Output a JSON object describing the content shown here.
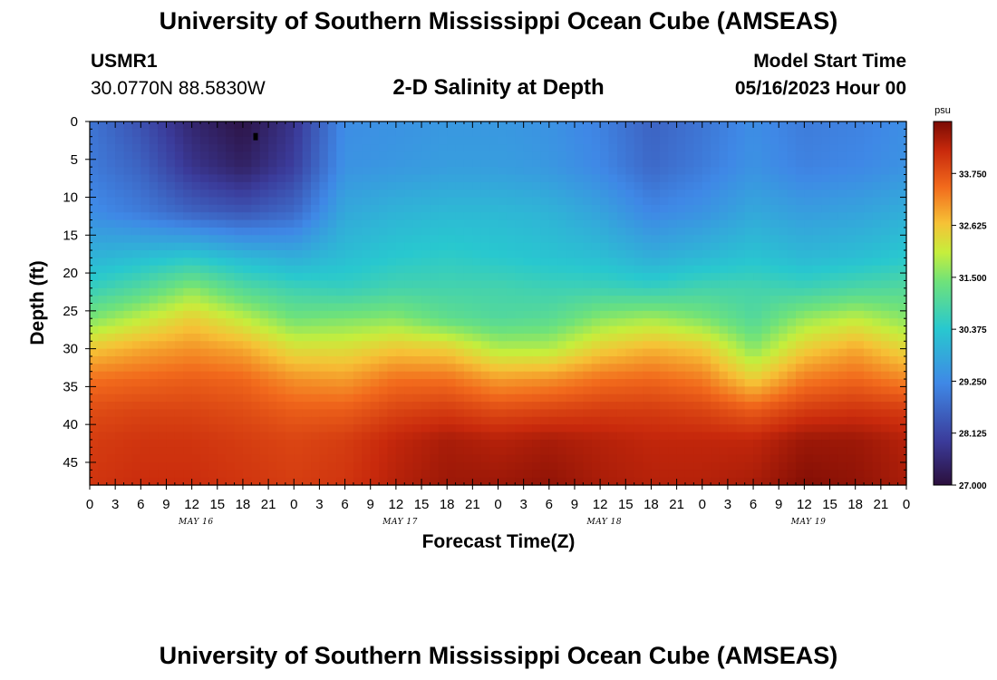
{
  "page": {
    "title": "University of Southern Mississippi Ocean Cube (AMSEAS)",
    "station": "USMR1",
    "coords": "30.0770N  88.5830W",
    "subtitle": "2-D Salinity at Depth",
    "model_start_label": "Model Start Time",
    "model_start_value": "05/16/2023 Hour 00",
    "footer_title": "University of Southern Mississippi Ocean Cube (AMSEAS)"
  },
  "chart_data": {
    "type": "heatmap",
    "title": "2-D Salinity at Depth",
    "xlabel": "Forecast Time(Z)",
    "ylabel": "Depth (ft)",
    "x_range_hours": [
      0,
      96
    ],
    "y_range_ft": [
      0,
      48
    ],
    "x_ticks": [
      "0",
      "3",
      "6",
      "9",
      "12",
      "15",
      "18",
      "21",
      "0",
      "3",
      "6",
      "9",
      "12",
      "15",
      "18",
      "21",
      "0",
      "3",
      "6",
      "9",
      "12",
      "15",
      "18",
      "21",
      "0",
      "3",
      "6",
      "9",
      "12",
      "15",
      "18",
      "21",
      "0"
    ],
    "day_labels": [
      "MAY 16",
      "MAY 17",
      "MAY 18",
      "MAY 19"
    ],
    "y_ticks": [
      "0",
      "5",
      "10",
      "15",
      "20",
      "25",
      "30",
      "35",
      "40",
      "45"
    ],
    "colorbar": {
      "unit": "psu",
      "min": 27.0,
      "max": 34.875,
      "labels": [
        "33.750",
        "32.625",
        "31.500",
        "30.375",
        "29.250",
        "28.125",
        "27.000"
      ]
    },
    "salinity_grid": {
      "depths_ft": [
        0,
        6,
        12,
        18,
        22,
        26,
        30,
        34,
        38,
        42,
        48
      ],
      "hours": [
        0,
        6,
        12,
        18,
        24,
        30,
        36,
        42,
        48,
        54,
        60,
        66,
        72,
        78,
        84,
        90,
        96
      ],
      "values": [
        [
          28.9,
          28.3,
          27.5,
          27.1,
          27.8,
          29.3,
          29.4,
          29.5,
          29.5,
          29.4,
          29.1,
          28.6,
          28.9,
          29.3,
          29.0,
          29.1,
          29.3
        ],
        [
          29.0,
          28.6,
          27.8,
          27.4,
          28.0,
          29.4,
          29.5,
          29.6,
          29.6,
          29.5,
          29.2,
          28.7,
          29.0,
          29.4,
          29.1,
          29.2,
          29.4
        ],
        [
          29.3,
          29.0,
          28.6,
          28.4,
          28.7,
          29.8,
          30.0,
          30.1,
          30.1,
          30.0,
          29.7,
          29.2,
          29.4,
          29.8,
          29.6,
          29.7,
          29.9
        ],
        [
          30.0,
          30.2,
          30.4,
          30.1,
          29.9,
          30.2,
          30.4,
          30.5,
          30.4,
          30.3,
          30.2,
          29.9,
          30.1,
          30.3,
          30.1,
          30.2,
          30.4
        ],
        [
          30.6,
          31.0,
          31.6,
          31.0,
          30.7,
          30.6,
          30.8,
          30.8,
          30.8,
          30.7,
          30.7,
          30.6,
          30.8,
          30.8,
          30.7,
          30.9,
          31.0
        ],
        [
          31.5,
          32.0,
          32.5,
          32.0,
          31.4,
          31.5,
          31.6,
          31.2,
          31.0,
          31.1,
          31.6,
          31.8,
          31.5,
          31.0,
          31.7,
          32.0,
          31.6
        ],
        [
          32.6,
          32.9,
          33.1,
          32.9,
          32.3,
          32.3,
          32.6,
          32.5,
          31.9,
          31.9,
          32.5,
          32.8,
          32.6,
          31.6,
          32.5,
          32.9,
          32.4
        ],
        [
          33.4,
          33.5,
          33.6,
          33.5,
          33.1,
          33.0,
          33.4,
          33.4,
          33.0,
          33.1,
          33.4,
          33.5,
          33.3,
          32.5,
          33.3,
          33.5,
          33.2
        ],
        [
          33.8,
          33.9,
          33.9,
          33.8,
          33.6,
          33.6,
          33.9,
          34.0,
          33.8,
          33.9,
          34.0,
          34.0,
          33.9,
          33.6,
          34.0,
          34.1,
          34.0
        ],
        [
          34.0,
          34.1,
          34.1,
          34.0,
          33.9,
          34.0,
          34.3,
          34.5,
          34.4,
          34.5,
          34.4,
          34.3,
          34.3,
          34.3,
          34.6,
          34.6,
          34.4
        ],
        [
          34.1,
          34.2,
          34.2,
          34.1,
          34.0,
          34.1,
          34.4,
          34.6,
          34.6,
          34.7,
          34.5,
          34.4,
          34.4,
          34.5,
          34.8,
          34.7,
          34.5
        ]
      ]
    },
    "marker": {
      "hour": 19.5,
      "depth_ft": 2
    }
  }
}
